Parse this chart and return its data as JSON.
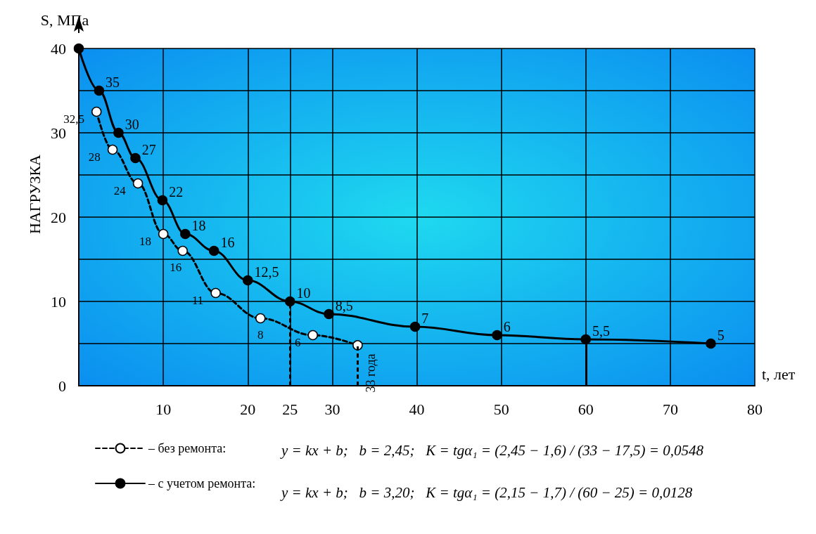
{
  "chart_data": {
    "type": "line",
    "xlabel": "t, лет",
    "ylabel": "S, МПа",
    "xlim": [
      0,
      80
    ],
    "ylim": [
      0,
      40
    ],
    "xticks": [
      {
        "value": 0,
        "label": null
      },
      10,
      20,
      25,
      30,
      40,
      50,
      60,
      70,
      80
    ],
    "yticks": [
      0,
      {
        "value": 5,
        "label": null
      },
      10,
      {
        "value": 15,
        "label": null
      },
      20,
      {
        "value": 25,
        "label": null
      },
      30,
      {
        "value": 35,
        "label": null
      },
      40
    ],
    "grid": true,
    "marker": "circle",
    "legend": "bottom",
    "series": [
      {
        "name": "– без ремонта:",
        "color": "#000000",
        "line_style": "dashed",
        "x": [
          2.1,
          4,
          7,
          10,
          12.3,
          16.2,
          21.5,
          27.7,
          33
        ],
        "values": [
          32.5,
          28,
          24,
          18,
          16,
          11,
          8,
          6,
          4.8
        ],
        "value_labels": [
          "32,5",
          "28",
          "24",
          "18",
          "16",
          "11",
          "8",
          "6",
          null
        ]
      },
      {
        "name": "– с учетом ремонта:",
        "color": "#000000",
        "line_style": "solid",
        "x": [
          0,
          2.4,
          4.7,
          6.7,
          9.9,
          12.6,
          16,
          20,
          25,
          29.6,
          39.8,
          49.5,
          60,
          74.8
        ],
        "values": [
          40,
          35,
          30,
          27,
          22,
          18,
          16,
          12.5,
          10,
          8.5,
          7,
          6,
          5.5,
          5
        ],
        "value_labels": [
          null,
          "35",
          "30",
          "27",
          "22",
          "18",
          "16",
          "12,5",
          "10",
          "8,5",
          "7",
          "6",
          "5,5",
          "5"
        ]
      }
    ],
    "ref_lines": [
      {
        "axis": "x",
        "value": 25,
        "label": null,
        "line_style": "dashed"
      },
      {
        "axis": "x",
        "value": 33,
        "label": null,
        "line_style": "dashed"
      },
      {
        "axis": "x",
        "value": 60,
        "label": null,
        "line_style": "solid"
      }
    ],
    "annotations": [
      "НАГРУЗКА",
      {
        "text": "33 года",
        "x": 33,
        "y": 4.8
      },
      "y = kx + b;   b = 2,45;   K = tgα₁ = (2,45 − 1,6) / (33 − 17,5) = 0,0548",
      "y = kx + b;   b = 3,20;   K = tgα₁ = (2,15 − 1,7) / (60 − 25) = 0,0128"
    ]
  }
}
